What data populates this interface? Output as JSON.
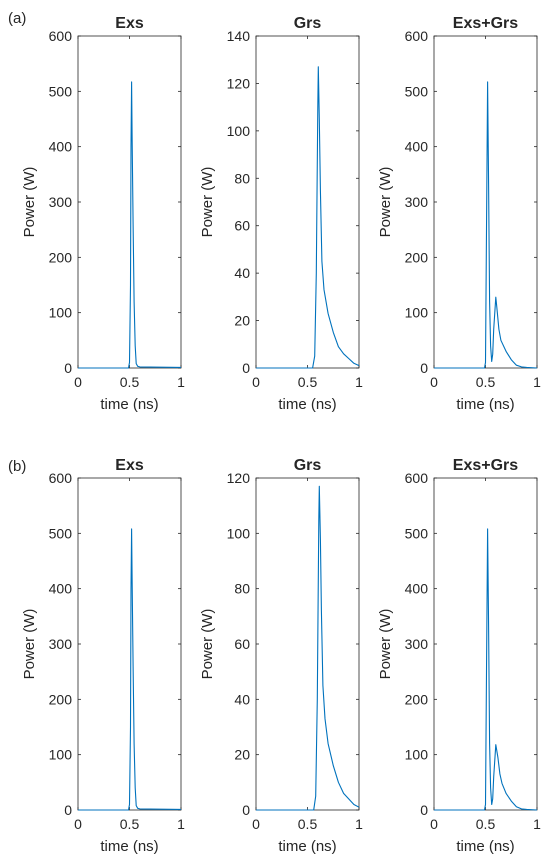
{
  "figure": {
    "panel_labels": [
      "(a)",
      "(b)"
    ],
    "line_color": "#0072BD"
  },
  "chart_data": [
    {
      "id": "a-exs",
      "type": "line",
      "title": "Exs",
      "xlabel": "time (ns)",
      "ylabel": "Power (W)",
      "xlim": [
        0,
        1
      ],
      "ylim": [
        0,
        600
      ],
      "xticks": [
        0,
        0.5,
        1
      ],
      "yticks": [
        0,
        100,
        200,
        300,
        400,
        500,
        600
      ],
      "grid": false,
      "x": [
        0,
        0.49,
        0.5,
        0.51,
        0.515,
        0.52,
        0.525,
        0.535,
        0.545,
        0.555,
        0.565,
        0.58,
        0.6,
        1
      ],
      "y": [
        0,
        0,
        10,
        150,
        400,
        517,
        420,
        260,
        120,
        40,
        8,
        3,
        2,
        1
      ]
    },
    {
      "id": "a-grs",
      "type": "line",
      "title": "Grs",
      "xlabel": "time (ns)",
      "ylabel": "Power (W)",
      "xlim": [
        0,
        1
      ],
      "ylim": [
        0,
        140
      ],
      "xticks": [
        0,
        0.5,
        1
      ],
      "yticks": [
        0,
        20,
        40,
        60,
        80,
        100,
        120,
        140
      ],
      "grid": false,
      "x": [
        0,
        0.55,
        0.57,
        0.585,
        0.6,
        0.605,
        0.615,
        0.625,
        0.64,
        0.66,
        0.7,
        0.75,
        0.8,
        0.85,
        0.9,
        0.95,
        1
      ],
      "y": [
        0,
        0,
        5,
        40,
        110,
        127,
        105,
        75,
        45,
        33,
        23,
        15,
        9,
        6,
        4,
        2,
        1
      ]
    },
    {
      "id": "a-exsgrs",
      "type": "line",
      "title": "Exs+Grs",
      "xlabel": "time (ns)",
      "ylabel": "Power (W)",
      "xlim": [
        0,
        1
      ],
      "ylim": [
        0,
        600
      ],
      "xticks": [
        0,
        0.5,
        1
      ],
      "yticks": [
        0,
        100,
        200,
        300,
        400,
        500,
        600
      ],
      "grid": false,
      "x": [
        0,
        0.49,
        0.5,
        0.51,
        0.52,
        0.53,
        0.54,
        0.55,
        0.56,
        0.57,
        0.58,
        0.6,
        0.61,
        0.63,
        0.65,
        0.7,
        0.75,
        0.8,
        0.85,
        0.9,
        1
      ],
      "y": [
        0,
        0,
        10,
        250,
        517,
        330,
        120,
        40,
        12,
        25,
        70,
        128,
        110,
        70,
        50,
        30,
        15,
        5,
        2,
        1,
        0
      ]
    },
    {
      "id": "b-exs",
      "type": "line",
      "title": "Exs",
      "xlabel": "time (ns)",
      "ylabel": "Power (W)",
      "xlim": [
        0,
        1
      ],
      "ylim": [
        0,
        600
      ],
      "xticks": [
        0,
        0.5,
        1
      ],
      "yticks": [
        0,
        100,
        200,
        300,
        400,
        500,
        600
      ],
      "grid": false,
      "x": [
        0,
        0.49,
        0.5,
        0.51,
        0.515,
        0.52,
        0.525,
        0.535,
        0.545,
        0.555,
        0.565,
        0.58,
        0.6,
        1
      ],
      "y": [
        0,
        0,
        10,
        150,
        400,
        508,
        420,
        260,
        120,
        40,
        8,
        3,
        2,
        1
      ]
    },
    {
      "id": "b-grs",
      "type": "line",
      "title": "Grs",
      "xlabel": "time (ns)",
      "ylabel": "Power (W)",
      "xlim": [
        0,
        1
      ],
      "ylim": [
        0,
        120
      ],
      "xticks": [
        0,
        0.5,
        1
      ],
      "yticks": [
        0,
        20,
        40,
        60,
        80,
        100,
        120
      ],
      "grid": false,
      "x": [
        0,
        0.56,
        0.58,
        0.595,
        0.61,
        0.615,
        0.625,
        0.635,
        0.65,
        0.67,
        0.7,
        0.75,
        0.8,
        0.85,
        0.9,
        0.95,
        1
      ],
      "y": [
        0,
        0,
        5,
        40,
        105,
        117,
        98,
        72,
        45,
        33,
        24,
        16,
        10,
        6,
        4,
        2,
        1
      ]
    },
    {
      "id": "b-exsgrs",
      "type": "line",
      "title": "Exs+Grs",
      "xlabel": "time (ns)",
      "ylabel": "Power (W)",
      "xlim": [
        0,
        1
      ],
      "ylim": [
        0,
        600
      ],
      "xticks": [
        0,
        0.5,
        1
      ],
      "yticks": [
        0,
        100,
        200,
        300,
        400,
        500,
        600
      ],
      "grid": false,
      "x": [
        0,
        0.49,
        0.5,
        0.51,
        0.52,
        0.53,
        0.54,
        0.55,
        0.56,
        0.57,
        0.58,
        0.6,
        0.62,
        0.64,
        0.66,
        0.7,
        0.75,
        0.8,
        0.85,
        0.9,
        1
      ],
      "y": [
        0,
        0,
        10,
        250,
        508,
        330,
        120,
        40,
        10,
        20,
        60,
        118,
        95,
        65,
        48,
        30,
        16,
        6,
        2,
        1,
        0
      ]
    }
  ]
}
